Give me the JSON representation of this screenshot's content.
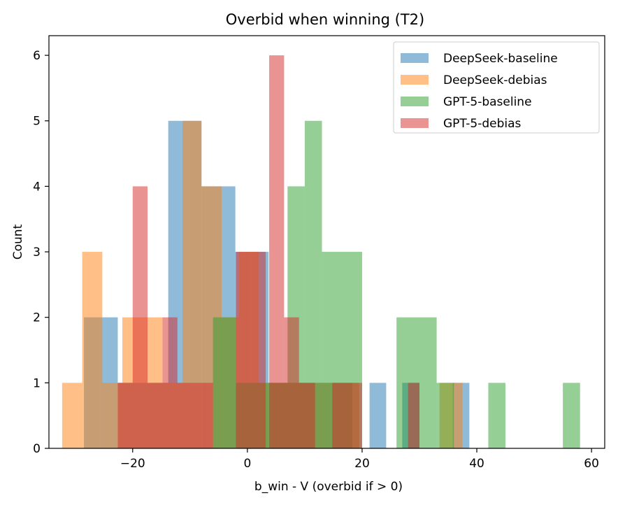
{
  "chart_data": {
    "type": "histogram",
    "title": "Overbid when winning (T2)",
    "xlabel": "b_win - V (overbid if > 0)",
    "ylabel": "Count",
    "xlim": [
      -34.6,
      62.3
    ],
    "ylim": [
      0,
      6.3
    ],
    "xticks": [
      -20,
      0,
      20,
      40,
      60
    ],
    "xtick_labels": [
      "−20",
      "0",
      "20",
      "40",
      "60"
    ],
    "yticks": [
      0,
      1,
      2,
      3,
      4,
      5,
      6
    ],
    "ytick_labels": [
      "0",
      "1",
      "2",
      "3",
      "4",
      "5",
      "6"
    ],
    "legend_position": "upper right",
    "series": [
      {
        "name": "DeepSeek-baseline",
        "color": "#1f77b4",
        "alpha": 0.5,
        "bins": [
          {
            "x0": -28.5,
            "x1": -25.6,
            "count": 2
          },
          {
            "x0": -25.6,
            "x1": -22.6,
            "count": 2
          },
          {
            "x0": -22.6,
            "x1": -19.7,
            "count": 1
          },
          {
            "x0": -19.7,
            "x1": -16.8,
            "count": 1
          },
          {
            "x0": -16.8,
            "x1": -13.8,
            "count": 1
          },
          {
            "x0": -13.8,
            "x1": -10.9,
            "count": 5
          },
          {
            "x0": -10.9,
            "x1": -8.0,
            "count": 5
          },
          {
            "x0": -8.0,
            "x1": -5.1,
            "count": 4
          },
          {
            "x0": -5.1,
            "x1": -2.1,
            "count": 4
          },
          {
            "x0": -2.1,
            "x1": 0.8,
            "count": 3
          },
          {
            "x0": 0.8,
            "x1": 3.7,
            "count": 3
          },
          {
            "x0": 3.7,
            "x1": 6.6,
            "count": 1
          },
          {
            "x0": 6.6,
            "x1": 9.6,
            "count": 1
          },
          {
            "x0": 9.6,
            "x1": 12.5,
            "count": 1
          },
          {
            "x0": 12.5,
            "x1": 15.4,
            "count": 1
          },
          {
            "x0": 15.4,
            "x1": 18.3,
            "count": 1
          },
          {
            "x0": 21.3,
            "x1": 24.2,
            "count": 1
          },
          {
            "x0": 27.0,
            "x1": 30.0,
            "count": 1
          },
          {
            "x0": 35.8,
            "x1": 38.7,
            "count": 1
          }
        ]
      },
      {
        "name": "DeepSeek-debias",
        "color": "#ff7f0e",
        "alpha": 0.5,
        "bins": [
          {
            "x0": -32.3,
            "x1": -28.8,
            "count": 1
          },
          {
            "x0": -28.8,
            "x1": -25.3,
            "count": 3
          },
          {
            "x0": -25.3,
            "x1": -21.8,
            "count": 1
          },
          {
            "x0": -21.8,
            "x1": -18.3,
            "count": 2
          },
          {
            "x0": -18.3,
            "x1": -14.8,
            "count": 2
          },
          {
            "x0": -14.8,
            "x1": -11.3,
            "count": 1
          },
          {
            "x0": -11.3,
            "x1": -8.0,
            "count": 5
          },
          {
            "x0": -8.0,
            "x1": -4.5,
            "count": 4
          },
          {
            "x0": -4.5,
            "x1": -1.5,
            "count": 2
          },
          {
            "x0": -1.5,
            "x1": 2.0,
            "count": 3
          },
          {
            "x0": 2.0,
            "x1": 5.5,
            "count": 1
          },
          {
            "x0": 5.5,
            "x1": 9.0,
            "count": 1
          },
          {
            "x0": 9.0,
            "x1": 12.5,
            "count": 1
          },
          {
            "x0": 12.5,
            "x1": 16.0,
            "count": 1
          },
          {
            "x0": 16.0,
            "x1": 19.5,
            "count": 1
          },
          {
            "x0": 33.5,
            "x1": 37.5,
            "count": 1
          }
        ]
      },
      {
        "name": "GPT-5-baseline",
        "color": "#2ca02c",
        "alpha": 0.5,
        "bins": [
          {
            "x0": -6.0,
            "x1": -2.0,
            "count": 2
          },
          {
            "x0": -2.0,
            "x1": 2.0,
            "count": 1
          },
          {
            "x0": 2.0,
            "x1": 7.0,
            "count": 1
          },
          {
            "x0": 7.0,
            "x1": 10.0,
            "count": 4
          },
          {
            "x0": 10.0,
            "x1": 13.0,
            "count": 5
          },
          {
            "x0": 13.0,
            "x1": 20.0,
            "count": 3
          },
          {
            "x0": 26.0,
            "x1": 33.0,
            "count": 2
          },
          {
            "x0": 33.0,
            "x1": 36.0,
            "count": 1
          },
          {
            "x0": 42.0,
            "x1": 45.0,
            "count": 1
          },
          {
            "x0": 55.0,
            "x1": 58.0,
            "count": 1
          }
        ]
      },
      {
        "name": "GPT-5-debias",
        "color": "#d62728",
        "alpha": 0.5,
        "bins": [
          {
            "x0": -22.6,
            "x1": -20.0,
            "count": 1
          },
          {
            "x0": -20.0,
            "x1": -17.4,
            "count": 4
          },
          {
            "x0": -17.4,
            "x1": -14.8,
            "count": 1
          },
          {
            "x0": -14.8,
            "x1": -12.2,
            "count": 2
          },
          {
            "x0": -12.2,
            "x1": -6.0,
            "count": 1
          },
          {
            "x0": -2.0,
            "x1": 0.6,
            "count": 3
          },
          {
            "x0": 0.6,
            "x1": 3.2,
            "count": 3
          },
          {
            "x0": 3.8,
            "x1": 6.4,
            "count": 6
          },
          {
            "x0": 6.4,
            "x1": 9.0,
            "count": 2
          },
          {
            "x0": 9.0,
            "x1": 11.8,
            "count": 1
          },
          {
            "x0": 14.8,
            "x1": 17.4,
            "count": 1
          },
          {
            "x0": 17.4,
            "x1": 20.0,
            "count": 1
          },
          {
            "x0": 28.0,
            "x1": 30.0,
            "count": 1
          }
        ]
      }
    ]
  }
}
